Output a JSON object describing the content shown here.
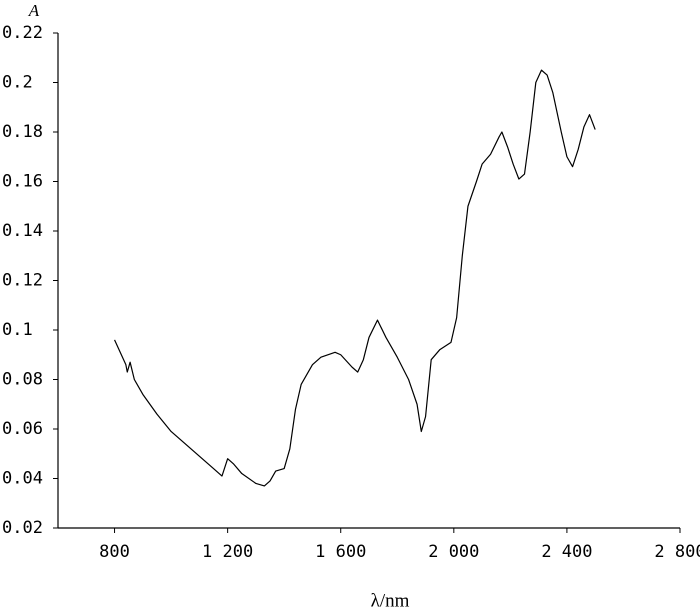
{
  "chart_data": {
    "type": "line",
    "y_label": "A",
    "x_label": "λ/nm",
    "x": [
      800,
      820,
      840,
      845,
      855,
      870,
      900,
      950,
      1000,
      1050,
      1100,
      1150,
      1180,
      1200,
      1220,
      1250,
      1300,
      1330,
      1350,
      1370,
      1400,
      1420,
      1440,
      1460,
      1500,
      1530,
      1580,
      1600,
      1640,
      1660,
      1680,
      1700,
      1730,
      1760,
      1800,
      1840,
      1870,
      1885,
      1900,
      1920,
      1950,
      1990,
      2010,
      2030,
      2050,
      2080,
      2100,
      2130,
      2160,
      2170,
      2190,
      2210,
      2230,
      2250,
      2270,
      2290,
      2310,
      2330,
      2350,
      2380,
      2400,
      2420,
      2440,
      2460,
      2480,
      2500
    ],
    "series": [
      {
        "color": "#000000",
        "values": [
          0.096,
          0.091,
          0.086,
          0.083,
          0.087,
          0.08,
          0.074,
          0.066,
          0.059,
          0.054,
          0.049,
          0.044,
          0.041,
          0.048,
          0.046,
          0.042,
          0.038,
          0.037,
          0.039,
          0.043,
          0.044,
          0.052,
          0.068,
          0.078,
          0.086,
          0.089,
          0.091,
          0.09,
          0.085,
          0.083,
          0.088,
          0.097,
          0.104,
          0.097,
          0.089,
          0.08,
          0.07,
          0.059,
          0.065,
          0.088,
          0.092,
          0.095,
          0.105,
          0.13,
          0.15,
          0.16,
          0.167,
          0.171,
          0.178,
          0.18,
          0.174,
          0.167,
          0.161,
          0.163,
          0.18,
          0.2,
          0.205,
          0.203,
          0.196,
          0.18,
          0.17,
          0.166,
          0.173,
          0.182,
          0.187,
          0.181
        ]
      }
    ],
    "xlim": [
      600,
      2800
    ],
    "xticks": [
      800,
      {
        "value": 1200,
        "label": "1 200"
      },
      {
        "value": 1600,
        "label": "1 600"
      },
      {
        "value": 2000,
        "label": "2 000"
      },
      {
        "value": 2400,
        "label": "2 400"
      },
      {
        "value": 2800,
        "label": "2 800"
      }
    ],
    "ylim": [
      0.02,
      0.22
    ],
    "yticks": [
      0.02,
      0.04,
      0.06,
      0.08,
      0.1,
      0.12,
      0.14,
      0.16,
      0.18,
      0.2,
      0.22
    ],
    "grid": false
  }
}
